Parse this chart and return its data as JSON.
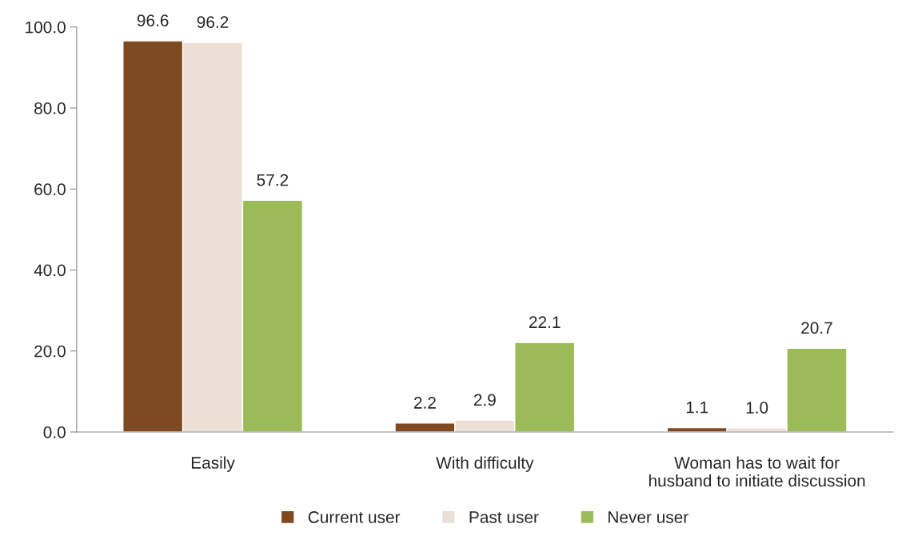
{
  "chart_data": {
    "type": "bar",
    "categories": [
      "Easily",
      "With difficulty",
      "Woman has to wait for\nhusband to initiate discussion"
    ],
    "series": [
      {
        "name": "Current user",
        "color": "#7f4a21",
        "values": [
          96.6,
          2.2,
          1.1
        ],
        "value_labels": [
          "96.6",
          "2.2",
          "1.1"
        ]
      },
      {
        "name": "Past user",
        "color": "#ecdfd6",
        "values": [
          96.2,
          2.9,
          1.0
        ],
        "value_labels": [
          "96.2",
          "2.9",
          "1.0"
        ]
      },
      {
        "name": "Never user",
        "color": "#9bbb59",
        "values": [
          57.2,
          22.1,
          20.7
        ],
        "value_labels": [
          "57.2",
          "22.1",
          "20.7"
        ]
      }
    ],
    "ylim": [
      0,
      100
    ],
    "yticks": [
      {
        "value": 0,
        "label": "0.0"
      },
      {
        "value": 20,
        "label": "20.0"
      },
      {
        "value": 40,
        "label": "40.0"
      },
      {
        "value": 60,
        "label": "60.0"
      },
      {
        "value": 80,
        "label": "80.0"
      },
      {
        "value": 100,
        "label": "100.0"
      }
    ],
    "grid": false,
    "legend": "bottom"
  }
}
